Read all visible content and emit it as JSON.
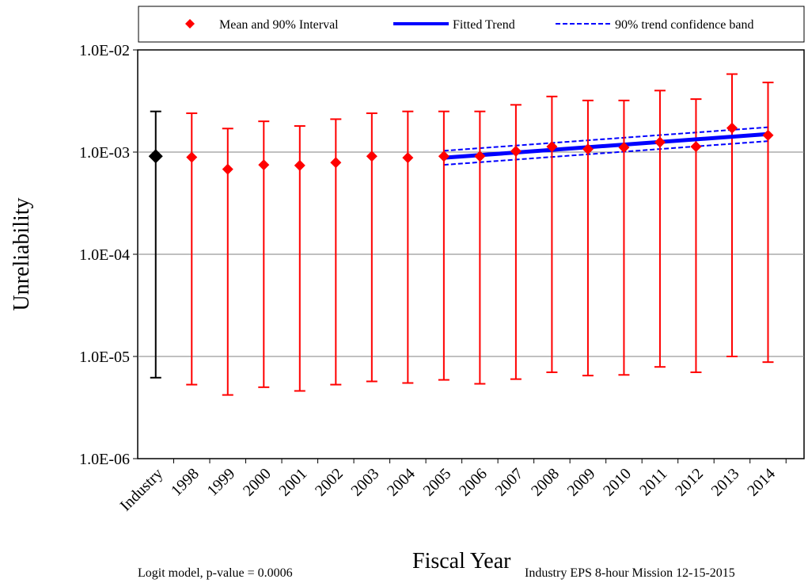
{
  "chart_data": {
    "type": "scatter",
    "title": "",
    "xlabel": "Fiscal Year",
    "ylabel": "Unreliability",
    "y_scale": "log",
    "ylim": [
      1e-06,
      0.01
    ],
    "y_ticks": [
      "1.0E-02",
      "1.0E-03",
      "1.0E-04",
      "1.0E-05",
      "1.0E-06"
    ],
    "grid": "horizontal major lines",
    "legend_position": "top",
    "categories": [
      "Industry",
      "1998",
      "1999",
      "2000",
      "2001",
      "2002",
      "2003",
      "2004",
      "2005",
      "2006",
      "2007",
      "2008",
      "2009",
      "2010",
      "2011",
      "2012",
      "2013",
      "2014"
    ],
    "series": [
      {
        "name": "Mean and 90% Interval",
        "color": "#ff0000",
        "industry_color": "#000000",
        "mean": [
          0.00091,
          0.00089,
          0.00068,
          0.00075,
          0.00074,
          0.00079,
          0.00091,
          0.00088,
          0.00091,
          0.00091,
          0.00102,
          0.00113,
          0.00107,
          0.00111,
          0.00125,
          0.00113,
          0.00172,
          0.00146
        ],
        "lower": [
          6.2e-06,
          5.3e-06,
          4.2e-06,
          5e-06,
          4.6e-06,
          5.3e-06,
          5.7e-06,
          5.5e-06,
          5.9e-06,
          5.4e-06,
          6e-06,
          7e-06,
          6.5e-06,
          6.6e-06,
          7.9e-06,
          7e-06,
          1e-05,
          8.8e-06
        ],
        "upper": [
          0.0025,
          0.0024,
          0.0017,
          0.002,
          0.0018,
          0.0021,
          0.0024,
          0.0025,
          0.0025,
          0.0025,
          0.0029,
          0.0035,
          0.0032,
          0.0032,
          0.004,
          0.0033,
          0.0058,
          0.0048
        ]
      },
      {
        "name": "Fitted Trend",
        "color": "#0000ff",
        "x": [
          "2005",
          "2014"
        ],
        "values": [
          0.00088,
          0.0015
        ]
      },
      {
        "name": "90% trend confidence band",
        "color": "#0000ff",
        "x": [
          "2005",
          "2014"
        ],
        "upper": [
          0.00103,
          0.00175
        ],
        "lower": [
          0.00075,
          0.00128
        ]
      }
    ],
    "annotations": {
      "model": "Logit model, p-value = 0.0006",
      "source": "Industry EPS 8-hour Mission 12-15-2015"
    }
  }
}
